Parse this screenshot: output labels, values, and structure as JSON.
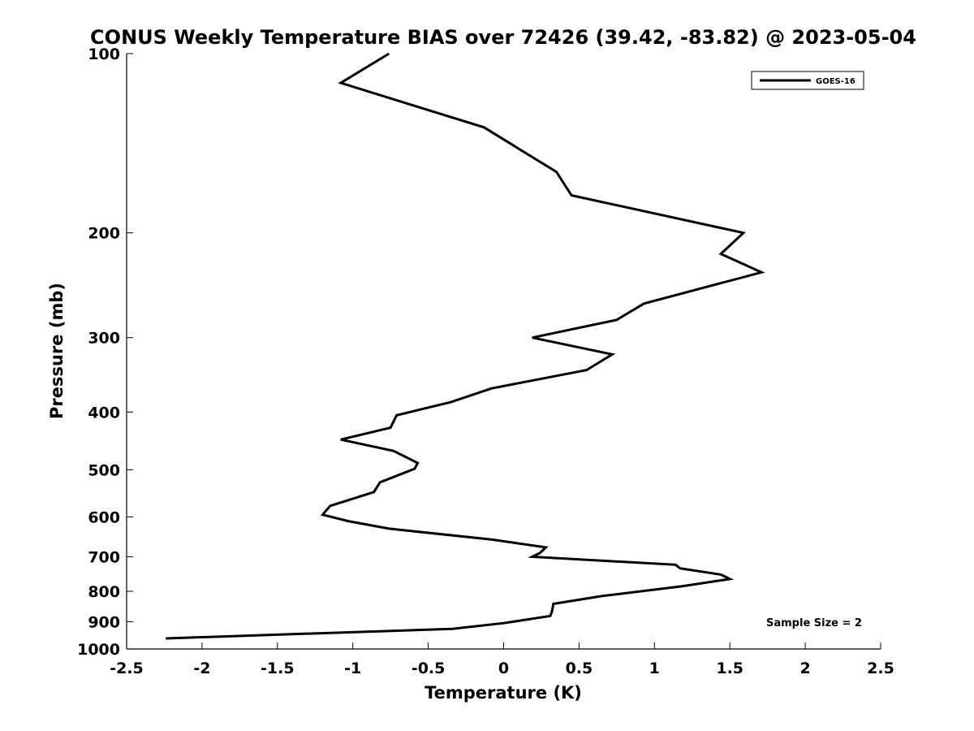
{
  "chart_data": {
    "type": "line",
    "title": "CONUS Weekly Temperature BIAS over 72426 (39.42, -83.82) @ 2023-05-04",
    "xlabel": "Temperature (K)",
    "ylabel": "Pressure (mb)",
    "xlim": [
      -2.5,
      2.5
    ],
    "ylim": [
      100,
      1000
    ],
    "y_scale": "log",
    "y_reversed": true,
    "grid": false,
    "legend_position": "top-right",
    "x_ticks": [
      "-2.5",
      "-2",
      "-1.5",
      "-1",
      "-0.5",
      "0",
      "0.5",
      "1",
      "1.5",
      "2",
      "2.5"
    ],
    "x_tick_values": [
      -2.5,
      -2,
      -1.5,
      -1,
      -0.5,
      0,
      0.5,
      1,
      1.5,
      2,
      2.5
    ],
    "y_ticks": [
      "100",
      "200",
      "300",
      "400",
      "500",
      "600",
      "700",
      "800",
      "900",
      "1000"
    ],
    "y_tick_values": [
      100,
      200,
      300,
      400,
      500,
      600,
      700,
      800,
      900,
      1000
    ],
    "annotation": "Sample Size = 2",
    "series": [
      {
        "name": "GOES-16",
        "color": "#000000",
        "x": [
          -0.76,
          -1.08,
          -0.13,
          0.35,
          0.45,
          1.59,
          1.44,
          1.71,
          0.93,
          0.75,
          0.19,
          0.72,
          0.55,
          -0.08,
          -0.35,
          -0.71,
          -0.75,
          -1.08,
          -0.73,
          -0.57,
          -0.59,
          -0.82,
          -0.86,
          -1.15,
          -1.2,
          -1.03,
          -0.76,
          -0.08,
          0.28,
          0.24,
          0.19,
          1.14,
          1.17,
          1.44,
          1.5,
          1.18,
          0.65,
          0.33,
          0.32,
          0.31,
          0.0,
          -0.34,
          -2.24
        ],
        "y": [
          100,
          112,
          133,
          158,
          173,
          200,
          217,
          233,
          263,
          280,
          300,
          320,
          340,
          365,
          385,
          405,
          425,
          445,
          465,
          487,
          498,
          525,
          545,
          575,
          595,
          610,
          628,
          655,
          675,
          690,
          700,
          722,
          732,
          750,
          763,
          785,
          815,
          840,
          865,
          880,
          905,
          925,
          960
        ]
      }
    ]
  }
}
